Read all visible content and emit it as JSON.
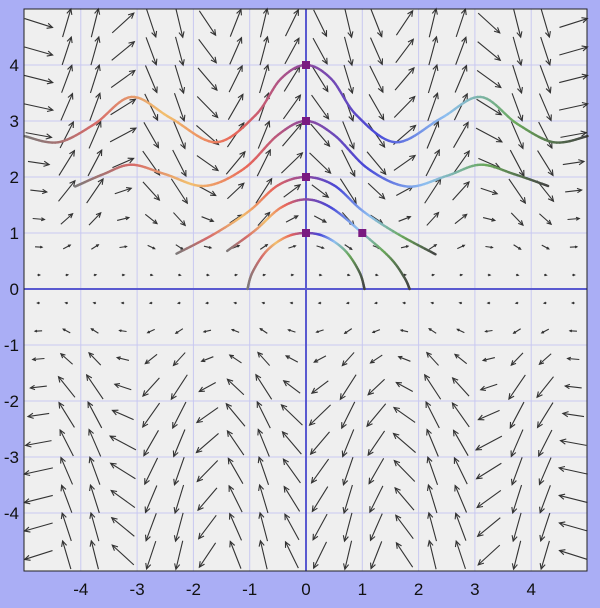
{
  "chart_data": {
    "type": "vector_field_with_trajectories",
    "title": "",
    "xlabel": "",
    "ylabel": "",
    "xlim": [
      -5,
      5
    ],
    "ylim": [
      -5,
      5
    ],
    "grid": true,
    "x_ticks": [
      -4,
      -3,
      -2,
      -1,
      0,
      1,
      2,
      3,
      4
    ],
    "y_ticks": [
      4,
      3,
      2,
      1,
      0,
      -1,
      -2,
      -3,
      -4
    ],
    "x_tick_labels": [
      "-4",
      "-3",
      "-2",
      "-1",
      "0",
      "1",
      "2",
      "3",
      "4"
    ],
    "y_tick_labels": [
      "4",
      "3",
      "2",
      "1",
      "0",
      "-1",
      "-2",
      "-3",
      "-4"
    ],
    "vector_field": {
      "sample_spacing": 0.5,
      "description": "dx proportional to y, dy proportional to -y^2*sin(2x); arrows point right above x-axis, left below"
    },
    "initial_points": [
      {
        "x": 0,
        "y": 4
      },
      {
        "x": 0,
        "y": 3
      },
      {
        "x": 0,
        "y": 2
      },
      {
        "x": 0,
        "y": 1
      },
      {
        "x": 1,
        "y": 1
      }
    ],
    "trajectories": [
      {
        "name": "through (0,4)",
        "points": [
          [
            -5,
            2.73
          ],
          [
            -4.4,
            2.62
          ],
          [
            -3.75,
            2.95
          ],
          [
            -3.1,
            3.43
          ],
          [
            -2.4,
            3.05
          ],
          [
            -1.6,
            2.62
          ],
          [
            -0.9,
            3.1
          ],
          [
            -0.45,
            3.75
          ],
          [
            0,
            4
          ],
          [
            0.45,
            3.75
          ],
          [
            0.9,
            3.1
          ],
          [
            1.6,
            2.62
          ],
          [
            2.4,
            3.05
          ],
          [
            3.1,
            3.43
          ],
          [
            3.75,
            2.95
          ],
          [
            4.4,
            2.62
          ],
          [
            5,
            2.73
          ]
        ]
      },
      {
        "name": "through (0,3)",
        "points": [
          [
            -4.1,
            1.83
          ],
          [
            -3.6,
            2.05
          ],
          [
            -3.1,
            2.22
          ],
          [
            -2.5,
            2.05
          ],
          [
            -1.8,
            1.84
          ],
          [
            -1.1,
            2.15
          ],
          [
            -0.5,
            2.75
          ],
          [
            0,
            3
          ],
          [
            0.5,
            2.75
          ],
          [
            1.1,
            2.15
          ],
          [
            1.8,
            1.83
          ],
          [
            2.5,
            2.02
          ],
          [
            3.1,
            2.22
          ],
          [
            3.7,
            2.05
          ],
          [
            4.3,
            1.84
          ]
        ]
      },
      {
        "name": "through (0,2)",
        "points": [
          [
            -2.3,
            0.63
          ],
          [
            -1.6,
            1.0
          ],
          [
            -1.0,
            1.4
          ],
          [
            -0.5,
            1.85
          ],
          [
            0,
            2
          ],
          [
            0.5,
            1.85
          ],
          [
            1.0,
            1.4
          ],
          [
            1.6,
            1.0
          ],
          [
            2.3,
            0.62
          ]
        ]
      },
      {
        "name": "through (1,1)",
        "points": [
          [
            -1.4,
            0.68
          ],
          [
            -0.9,
            1.05
          ],
          [
            -0.45,
            1.45
          ],
          [
            0,
            1.6
          ],
          [
            0.45,
            1.45
          ],
          [
            1,
            1
          ],
          [
            1.5,
            0.55
          ],
          [
            1.75,
            0.2
          ],
          [
            1.84,
            0
          ]
        ]
      },
      {
        "name": "through (0,1)",
        "points": [
          [
            -1.04,
            0
          ],
          [
            -0.95,
            0.3
          ],
          [
            -0.7,
            0.68
          ],
          [
            -0.35,
            0.93
          ],
          [
            0,
            1
          ],
          [
            0.35,
            0.93
          ],
          [
            0.7,
            0.68
          ],
          [
            0.95,
            0.3
          ],
          [
            1.04,
            0
          ]
        ]
      }
    ],
    "trajectory_color_stops": [
      "#7a7a7a",
      "#d66a6a",
      "#f2c06e",
      "#e8665a",
      "#8f4a9e",
      "#4848d8",
      "#8ec0f0",
      "#6aa85a",
      "#444444"
    ]
  },
  "colors": {
    "background": "#aaaef5",
    "plot_background": "#efefef",
    "grid": "#c8c8f0",
    "axis": "#5a5ad0",
    "arrow": "#333333",
    "marker": "#7a1a80"
  }
}
